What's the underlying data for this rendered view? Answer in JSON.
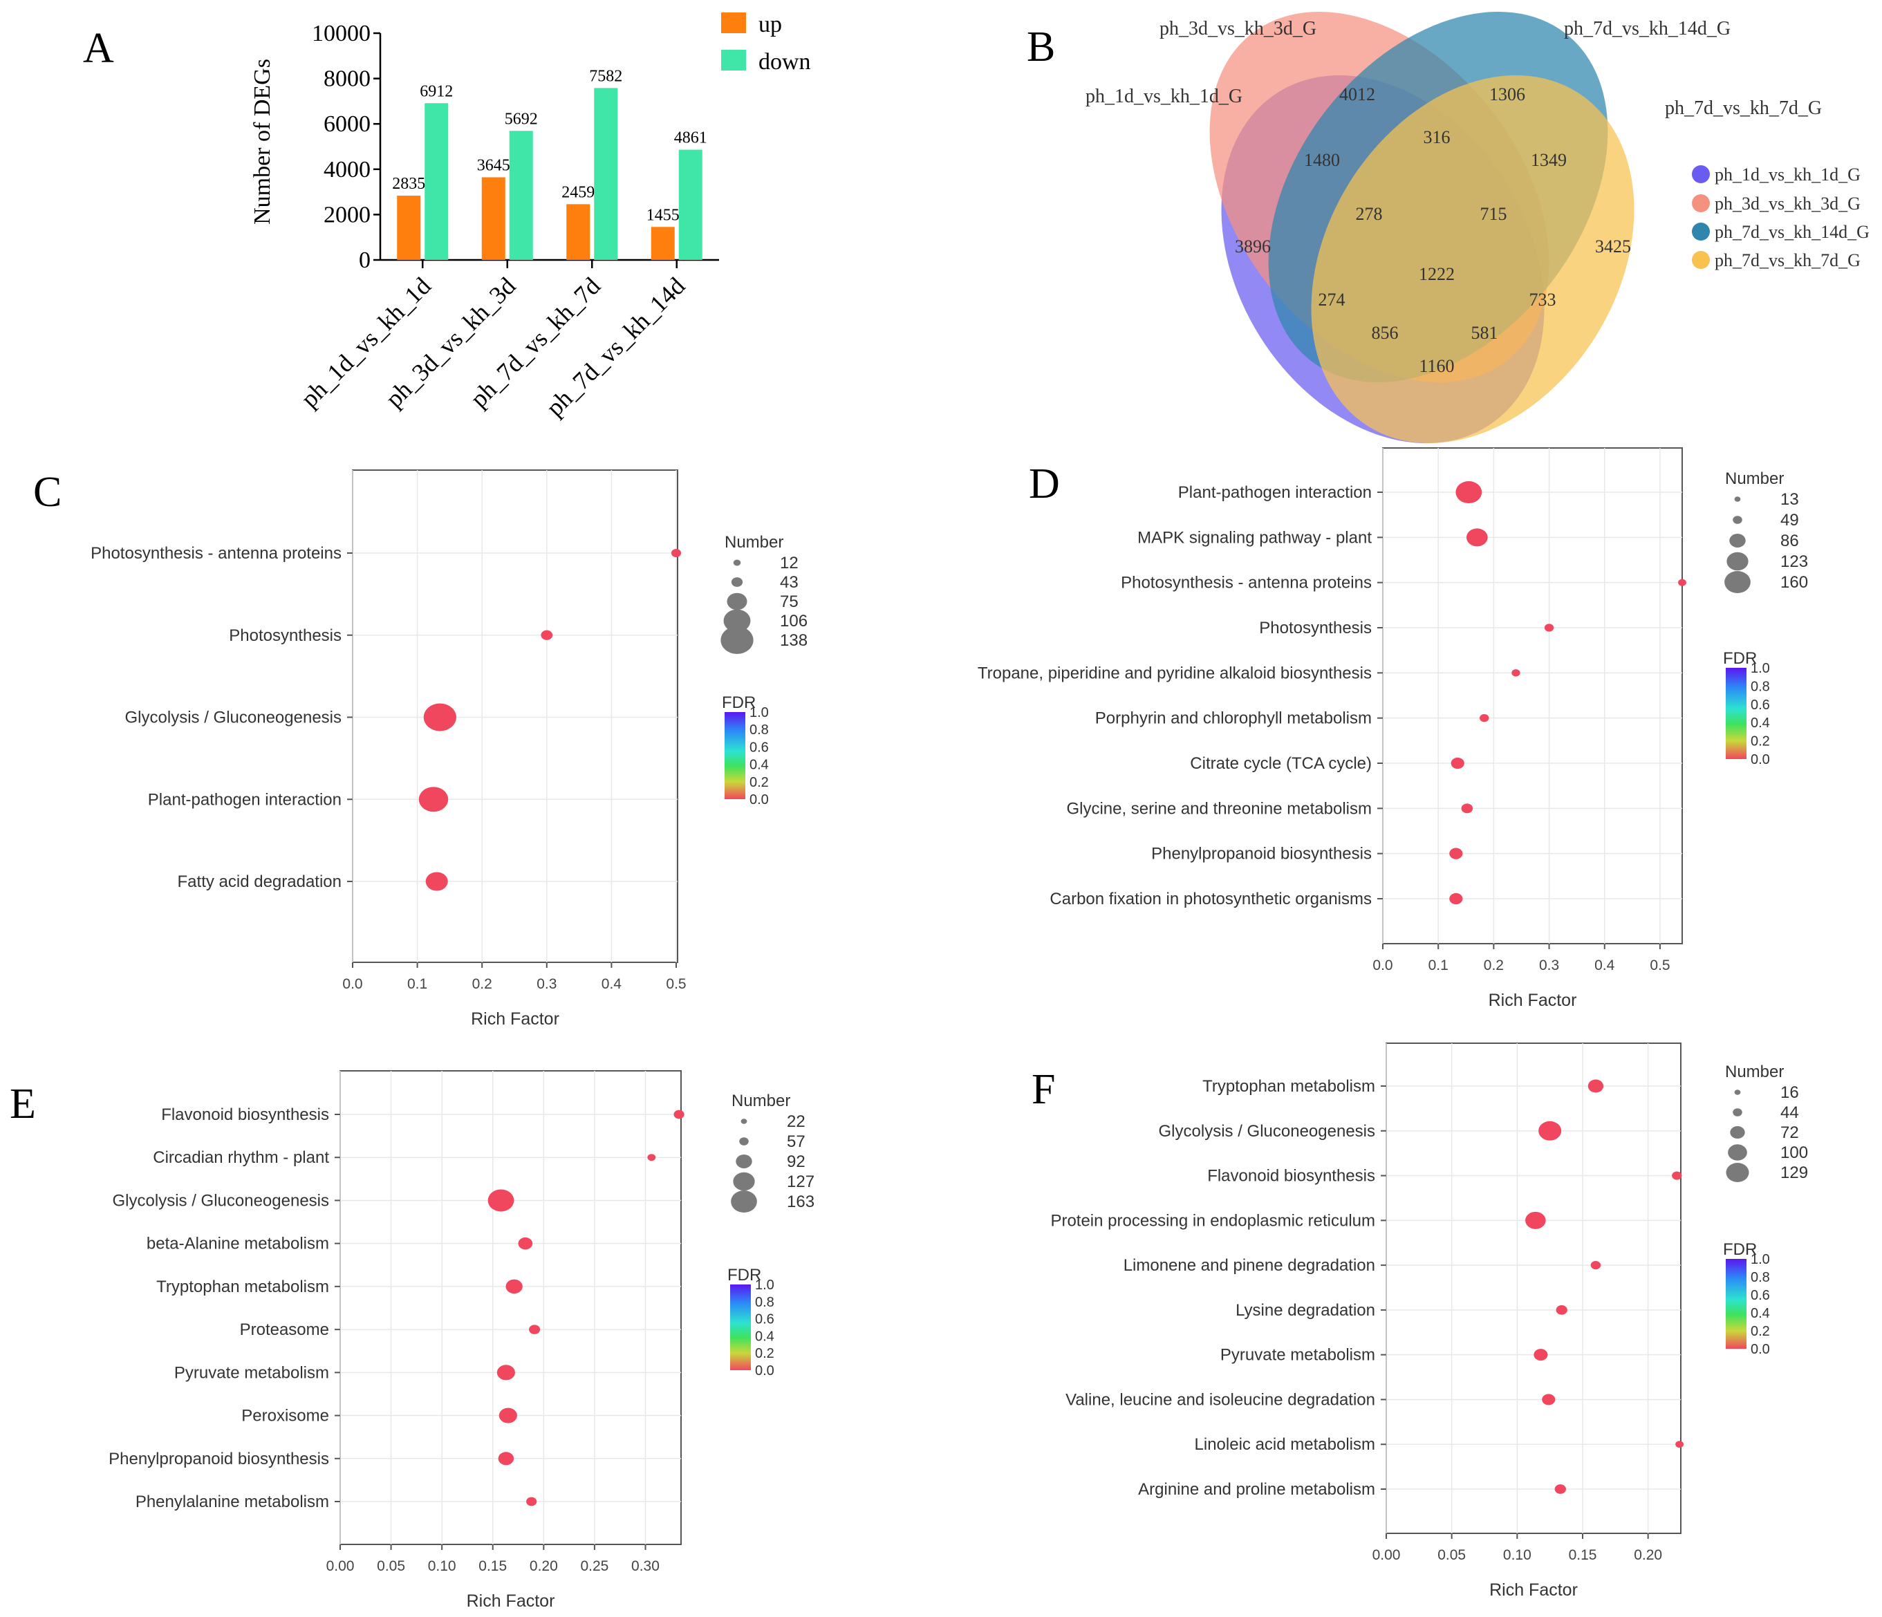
{
  "figure": {
    "panel_letters": [
      "A",
      "B",
      "C",
      "D",
      "E",
      "F"
    ]
  },
  "chart_data": [
    {
      "id": "A",
      "type": "bar",
      "categories": [
        "ph_1d_vs_kh_1d",
        "ph_3d_vs_kh_3d",
        "ph_7d_vs_kh_7d",
        "ph_7d_vs_kh_14d"
      ],
      "series": [
        {
          "name": "up",
          "values": [
            2835,
            3645,
            2459,
            1455
          ],
          "color": "#ff7f0e"
        },
        {
          "name": "down",
          "values": [
            6912,
            5692,
            7582,
            4861
          ],
          "color": "#3fe6a8"
        }
      ],
      "ylabel": "Number of DEGs",
      "ylim": [
        0,
        10000
      ],
      "yticks": [
        0,
        2000,
        4000,
        6000,
        8000,
        10000
      ],
      "legend": "top-right"
    },
    {
      "id": "B",
      "type": "venn",
      "sets": [
        {
          "name": "ph_1d_vs_kh_1d_G",
          "color": "#6a5cf0"
        },
        {
          "name": "ph_3d_vs_kh_3d_G",
          "color": "#f4917f"
        },
        {
          "name": "ph_7d_vs_kh_14d_G",
          "color": "#2f86ad"
        },
        {
          "name": "ph_7d_vs_kh_7d_G",
          "color": "#f8c251"
        }
      ],
      "regions": [
        "4012",
        "1306",
        "316",
        "1349",
        "1480",
        "278",
        "715",
        "3896",
        "1222",
        "3425",
        "274",
        "733",
        "856",
        "581",
        "1160"
      ],
      "legend": "right"
    },
    {
      "id": "C",
      "type": "scatter",
      "xlabel": "Rich Factor",
      "xlim": [
        0,
        0.5
      ],
      "xticks": [
        "0.0",
        "0.1",
        "0.2",
        "0.3",
        "0.4",
        "0.5"
      ],
      "pathways": [
        "Photosynthesis - antenna proteins",
        "Photosynthesis",
        "Glycolysis / Gluconeogenesis",
        "Plant-pathogen interaction",
        "Fatty acid degradation"
      ],
      "rich_factor": [
        0.5,
        0.3,
        0.135,
        0.125,
        0.13
      ],
      "number": [
        12,
        22,
        138,
        120,
        80
      ],
      "size_legend_title": "Number",
      "size_legend": [
        "12",
        "43",
        "75",
        "106",
        "138"
      ],
      "color_legend_title": "FDR",
      "color_legend": [
        "1.0",
        "0.8",
        "0.6",
        "0.4",
        "0.2",
        "0.0"
      ]
    },
    {
      "id": "D",
      "type": "scatter",
      "xlabel": "Rich Factor",
      "xlim": [
        0,
        0.54
      ],
      "xticks": [
        "0.0",
        "0.1",
        "0.2",
        "0.3",
        "0.4",
        "0.5"
      ],
      "pathways": [
        "Plant-pathogen interaction",
        "MAPK signaling pathway - plant",
        "Photosynthesis - antenna proteins",
        "Photosynthesis",
        "Tropane, piperidine and pyridine alkaloid biosynthesis",
        "Porphyrin and chlorophyll metabolism",
        "Citrate cycle (TCA cycle)",
        "Glycine, serine and threonine metabolism",
        "Phenylpropanoid biosynthesis",
        "Carbon fixation in photosynthetic organisms"
      ],
      "rich_factor": [
        0.155,
        0.17,
        0.54,
        0.3,
        0.24,
        0.183,
        0.135,
        0.152,
        0.132,
        0.132
      ],
      "number": [
        160,
        120,
        13,
        22,
        16,
        22,
        55,
        40,
        55,
        55
      ],
      "size_legend_title": "Number",
      "size_legend": [
        "13",
        "49",
        "86",
        "123",
        "160"
      ],
      "color_legend_title": "FDR",
      "color_legend": [
        "1.0",
        "0.8",
        "0.6",
        "0.4",
        "0.2",
        "0.0"
      ]
    },
    {
      "id": "E",
      "type": "scatter",
      "xlabel": "Rich Factor",
      "xlim": [
        0,
        0.335
      ],
      "xticks": [
        "0.00",
        "0.05",
        "0.10",
        "0.15",
        "0.20",
        "0.25",
        "0.30"
      ],
      "pathways": [
        "Flavonoid biosynthesis",
        "Circadian rhythm - plant",
        "Glycolysis / Gluconeogenesis",
        "beta-Alanine metabolism",
        "Tryptophan metabolism",
        "Proteasome",
        "Pyruvate metabolism",
        "Peroxisome",
        "Phenylpropanoid biosynthesis",
        "Phenylalanine metabolism"
      ],
      "rich_factor": [
        0.333,
        0.306,
        0.158,
        0.182,
        0.171,
        0.191,
        0.163,
        0.165,
        0.163,
        0.188
      ],
      "number": [
        40,
        22,
        163,
        70,
        90,
        45,
        100,
        100,
        80,
        40
      ],
      "size_legend_title": "Number",
      "size_legend": [
        "22",
        "57",
        "92",
        "127",
        "163"
      ],
      "color_legend_title": "FDR",
      "color_legend": [
        "1.0",
        "0.8",
        "0.6",
        "0.4",
        "0.2",
        "0.0"
      ]
    },
    {
      "id": "F",
      "type": "scatter",
      "xlabel": "Rich Factor",
      "xlim": [
        0,
        0.225
      ],
      "xticks": [
        "0.00",
        "0.05",
        "0.10",
        "0.15",
        "0.20"
      ],
      "pathways": [
        "Tryptophan metabolism",
        "Glycolysis / Gluconeogenesis",
        "Flavonoid biosynthesis",
        "Protein processing in endoplasmic reticulum",
        "Limonene and pinene degradation",
        "Lysine degradation",
        "Pyruvate metabolism",
        "Valine, leucine and isoleucine degradation",
        "Linoleic acid metabolism",
        "Arginine and proline metabolism"
      ],
      "rich_factor": [
        0.16,
        0.125,
        0.222,
        0.114,
        0.16,
        0.134,
        0.118,
        0.124,
        0.224,
        0.133
      ],
      "number": [
        72,
        129,
        30,
        110,
        30,
        40,
        60,
        55,
        16,
        40
      ],
      "size_legend_title": "Number",
      "size_legend": [
        "16",
        "44",
        "72",
        "100",
        "129"
      ],
      "color_legend_title": "FDR",
      "color_legend": [
        "1.0",
        "0.8",
        "0.6",
        "0.4",
        "0.2",
        "0.0"
      ]
    }
  ]
}
